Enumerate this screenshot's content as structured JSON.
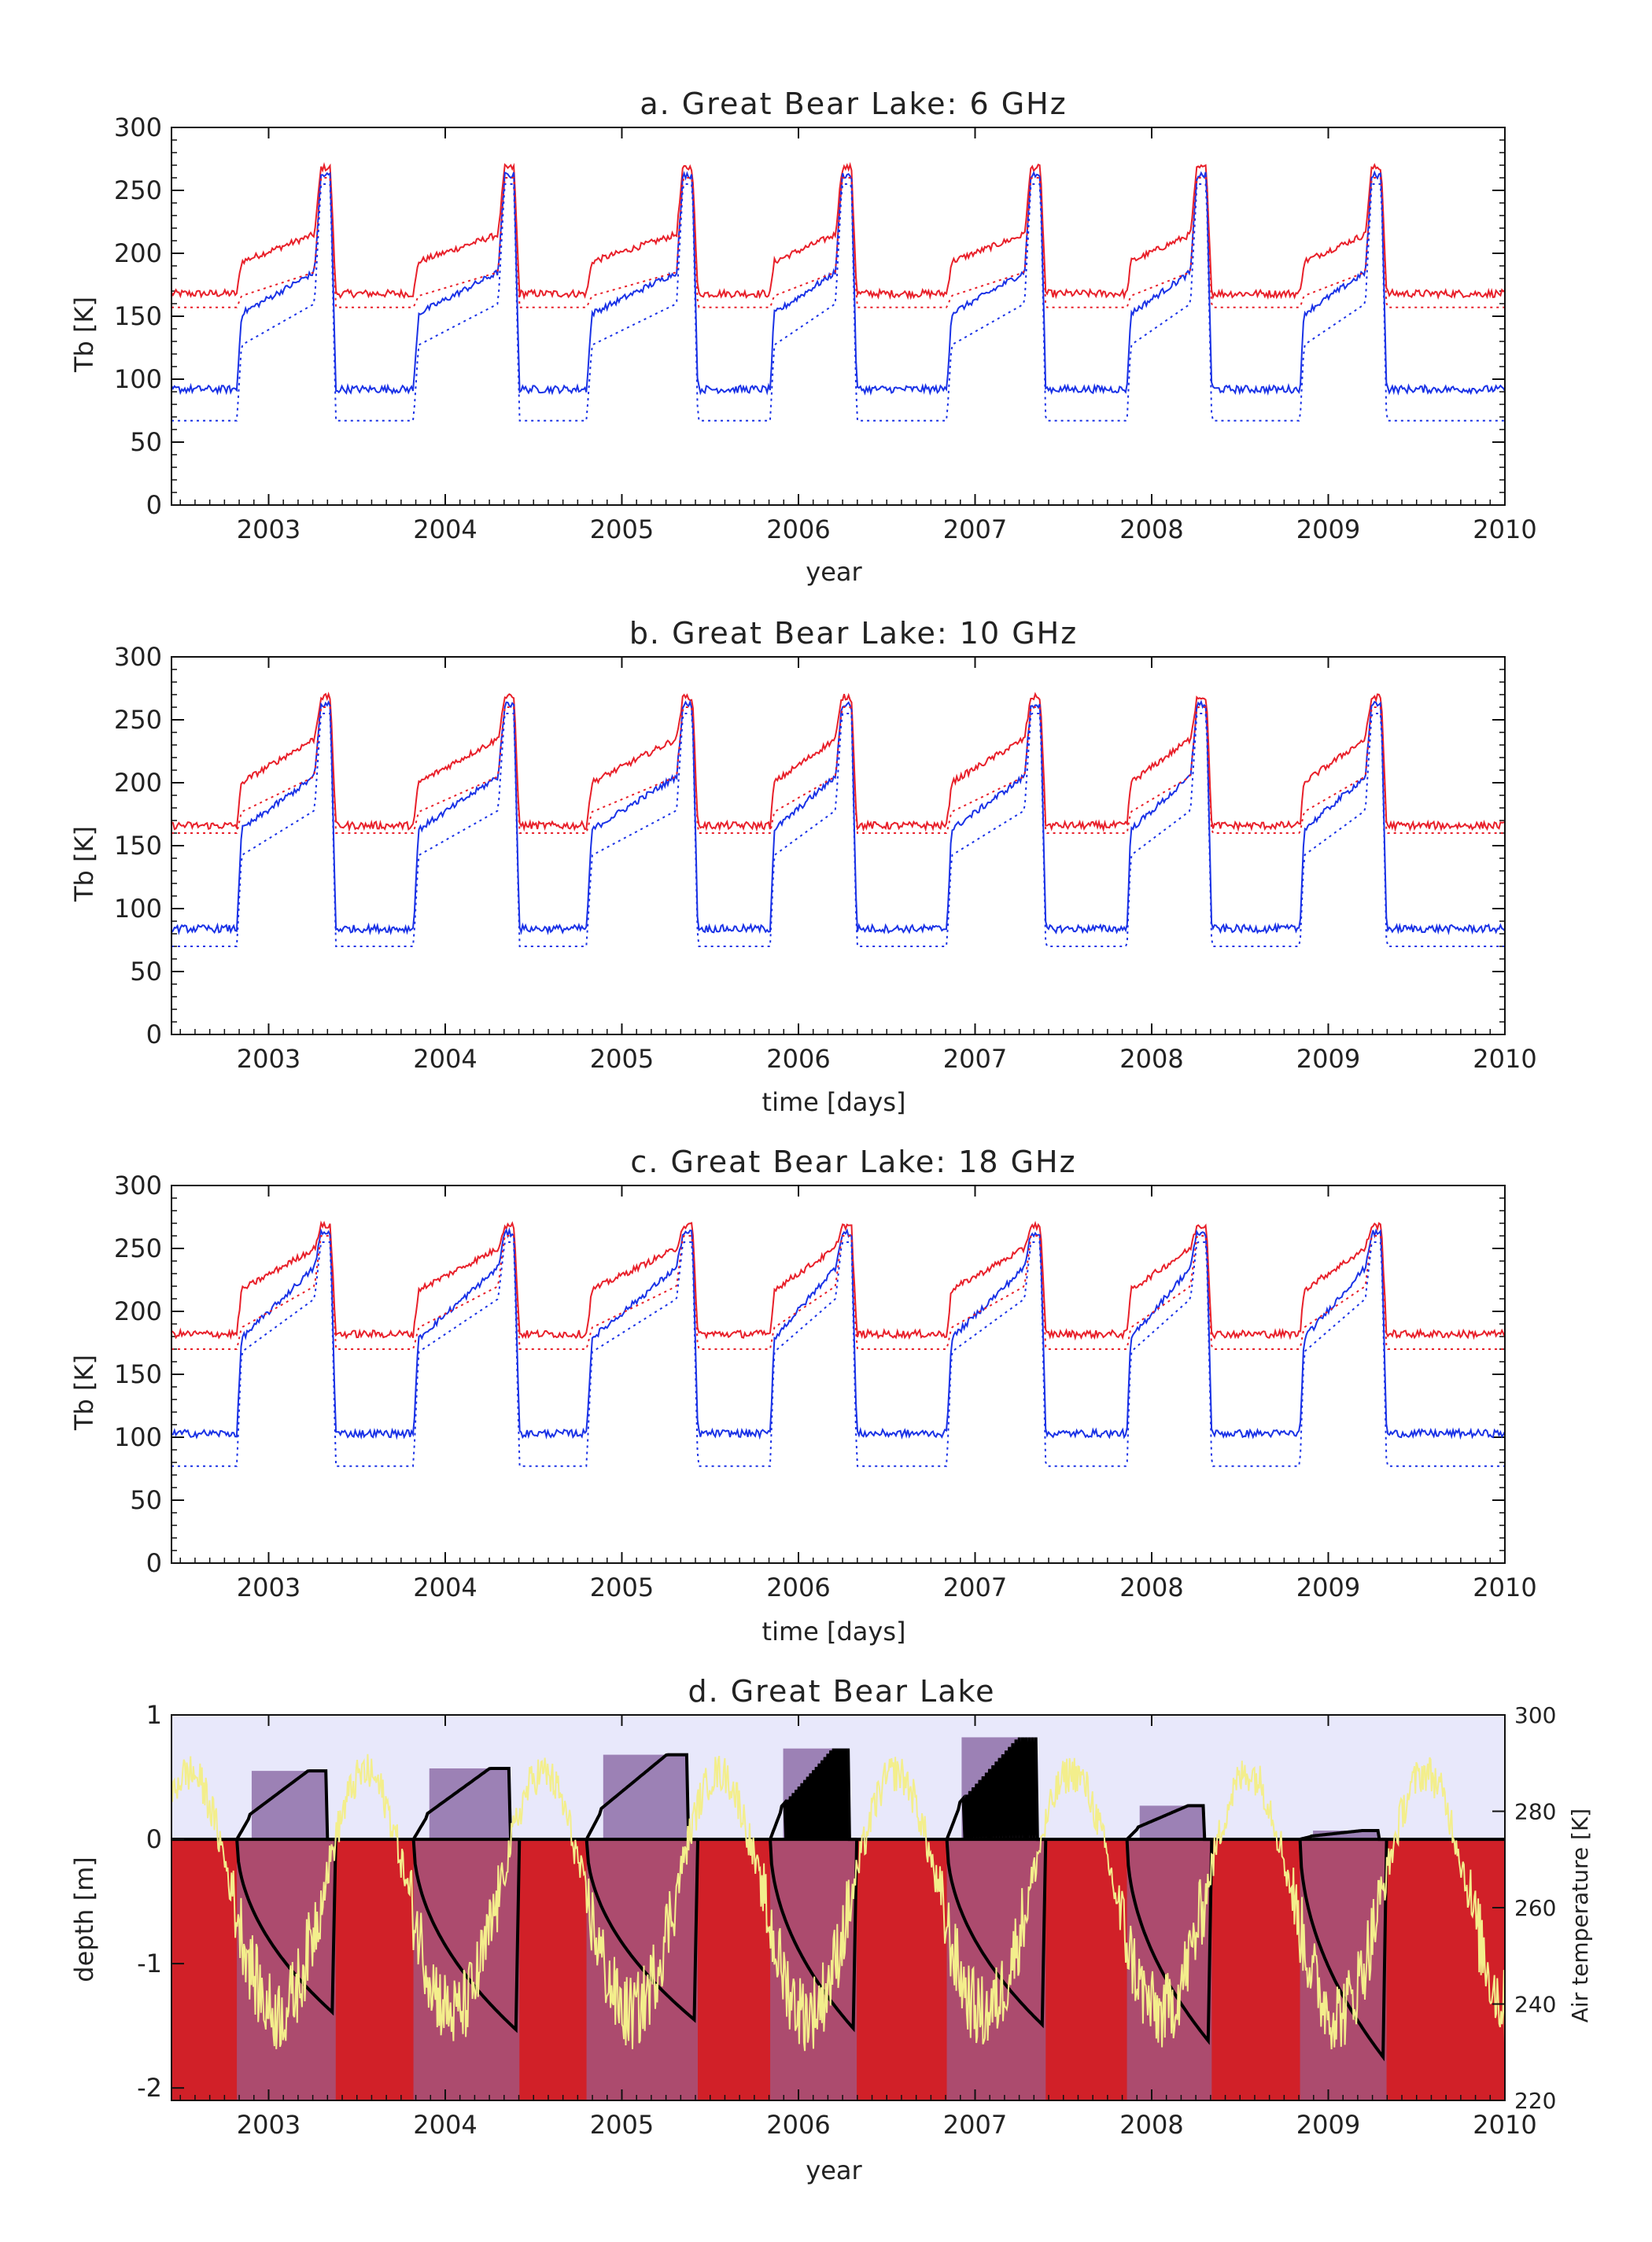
{
  "colors": {
    "h_pol": "#e8202a",
    "v_pol": "#1a32e6",
    "air_temp": "#f3ee8c",
    "ice_fill": "#8e6fa8",
    "water": "#d12028",
    "sky": "#e8e8fb",
    "ice_lines": "#000000"
  },
  "chart_data": [
    {
      "type": "line",
      "title": "a. Great Bear Lake: 6 GHz",
      "xlabel": "year",
      "ylabel": "Tb [K]",
      "xlim": [
        2002.45,
        2010.0
      ],
      "ylim": [
        0,
        300
      ],
      "x_ticks": [
        "2003",
        "2004",
        "2005",
        "2006",
        "2007",
        "2008",
        "2009",
        "2010"
      ],
      "y_ticks": [
        "0",
        "50",
        "100",
        "150",
        "200",
        "250",
        "300"
      ],
      "series": [
        {
          "values": {
            "open_water": 168,
            "ice_start": 192,
            "ice_end": 215,
            "melt_peak": 268
          },
          "color": "#e8202a",
          "style": "solid"
        },
        {
          "values": {
            "open_water": 92,
            "ice_start": 150,
            "ice_end": 185,
            "melt_peak": 262
          },
          "color": "#1a32e6",
          "style": "solid"
        },
        {
          "values": {
            "open_water": 157,
            "ice_start": 165,
            "ice_end": 185,
            "melt_peak": 260
          },
          "color": "#e8202a",
          "style": "dotted"
        },
        {
          "values": {
            "open_water": 67,
            "ice_start": 125,
            "ice_end": 160,
            "melt_peak": 255
          },
          "color": "#1a32e6",
          "style": "dotted"
        }
      ]
    },
    {
      "type": "line",
      "title": "b. Great Bear Lake: 10 GHz",
      "xlabel": "time [days]",
      "ylabel": "Tb [K]",
      "xlim": [
        2002.45,
        2010.0
      ],
      "ylim": [
        0,
        300
      ],
      "x_ticks": [
        "2003",
        "2004",
        "2005",
        "2006",
        "2007",
        "2008",
        "2009",
        "2010"
      ],
      "y_ticks": [
        "0",
        "50",
        "100",
        "150",
        "200",
        "250",
        "300"
      ],
      "series": [
        {
          "values": {
            "open_water": 166,
            "ice_start": 198,
            "ice_end": 235,
            "melt_peak": 268
          },
          "color": "#e8202a",
          "style": "solid"
        },
        {
          "values": {
            "open_water": 84,
            "ice_start": 160,
            "ice_end": 205,
            "melt_peak": 262
          },
          "color": "#1a32e6",
          "style": "solid"
        },
        {
          "values": {
            "open_water": 160,
            "ice_start": 175,
            "ice_end": 205,
            "melt_peak": 260
          },
          "color": "#e8202a",
          "style": "dotted"
        },
        {
          "values": {
            "open_water": 70,
            "ice_start": 140,
            "ice_end": 178,
            "melt_peak": 255
          },
          "color": "#1a32e6",
          "style": "dotted"
        }
      ]
    },
    {
      "type": "line",
      "title": "c. Great Bear Lake: 18 GHz",
      "xlabel": "time [days]",
      "ylabel": "Tb [K]",
      "xlim": [
        2002.45,
        2010.0
      ],
      "ylim": [
        0,
        300
      ],
      "x_ticks": [
        "2003",
        "2004",
        "2005",
        "2006",
        "2007",
        "2008",
        "2009",
        "2010"
      ],
      "y_ticks": [
        "0",
        "50",
        "100",
        "150",
        "200",
        "250",
        "300"
      ],
      "series": [
        {
          "values": {
            "open_water": 182,
            "ice_start": 215,
            "ice_end": 250,
            "melt_peak": 268
          },
          "color": "#e8202a",
          "style": "solid"
        },
        {
          "values": {
            "open_water": 103,
            "ice_start": 175,
            "ice_end": 235,
            "melt_peak": 262
          },
          "color": "#1a32e6",
          "style": "solid"
        },
        {
          "values": {
            "open_water": 170,
            "ice_start": 185,
            "ice_end": 220,
            "melt_peak": 260
          },
          "color": "#e8202a",
          "style": "dotted"
        },
        {
          "values": {
            "open_water": 77,
            "ice_start": 165,
            "ice_end": 210,
            "melt_peak": 255
          },
          "color": "#1a32e6",
          "style": "dotted"
        }
      ]
    },
    {
      "type": "area",
      "title": "d. Great Bear Lake",
      "xlabel": "year",
      "ylabel": "depth [m]",
      "y2label": "Air temperature [K]",
      "xlim": [
        2002.45,
        2010.0
      ],
      "ylim": [
        -2.1,
        1.0
      ],
      "y2lim": [
        220,
        300
      ],
      "x_ticks": [
        "2003",
        "2004",
        "2005",
        "2006",
        "2007",
        "2008",
        "2009",
        "2010"
      ],
      "y_ticks": [
        "-2",
        "-1",
        "0",
        "1"
      ],
      "y2_ticks": [
        "220",
        "240",
        "260",
        "280",
        "300"
      ],
      "winters": [
        {
          "freeze": 2002.82,
          "breakup": 2003.38,
          "max_ice": -1.39,
          "max_snow": 0.55,
          "snow_jagged": false
        },
        {
          "freeze": 2003.82,
          "breakup": 2004.42,
          "max_ice": -1.53,
          "max_snow": 0.57,
          "snow_jagged": false
        },
        {
          "freeze": 2004.8,
          "breakup": 2005.43,
          "max_ice": -1.45,
          "max_snow": 0.68,
          "snow_jagged": false
        },
        {
          "freeze": 2005.84,
          "breakup": 2006.33,
          "max_ice": -1.52,
          "max_snow": 0.73,
          "snow_jagged": true
        },
        {
          "freeze": 2006.84,
          "breakup": 2007.4,
          "max_ice": -1.49,
          "max_snow": 0.82,
          "snow_jagged": true
        },
        {
          "freeze": 2007.86,
          "breakup": 2008.34,
          "max_ice": -1.62,
          "max_snow": 0.27,
          "snow_jagged": false
        },
        {
          "freeze": 2008.84,
          "breakup": 2009.33,
          "max_ice": -1.75,
          "max_snow": 0.07,
          "snow_jagged": false
        }
      ],
      "air_temperature": {
        "mean": 262,
        "summer_max": 288,
        "winter_min": 238,
        "color": "#f3ee8c"
      }
    }
  ]
}
